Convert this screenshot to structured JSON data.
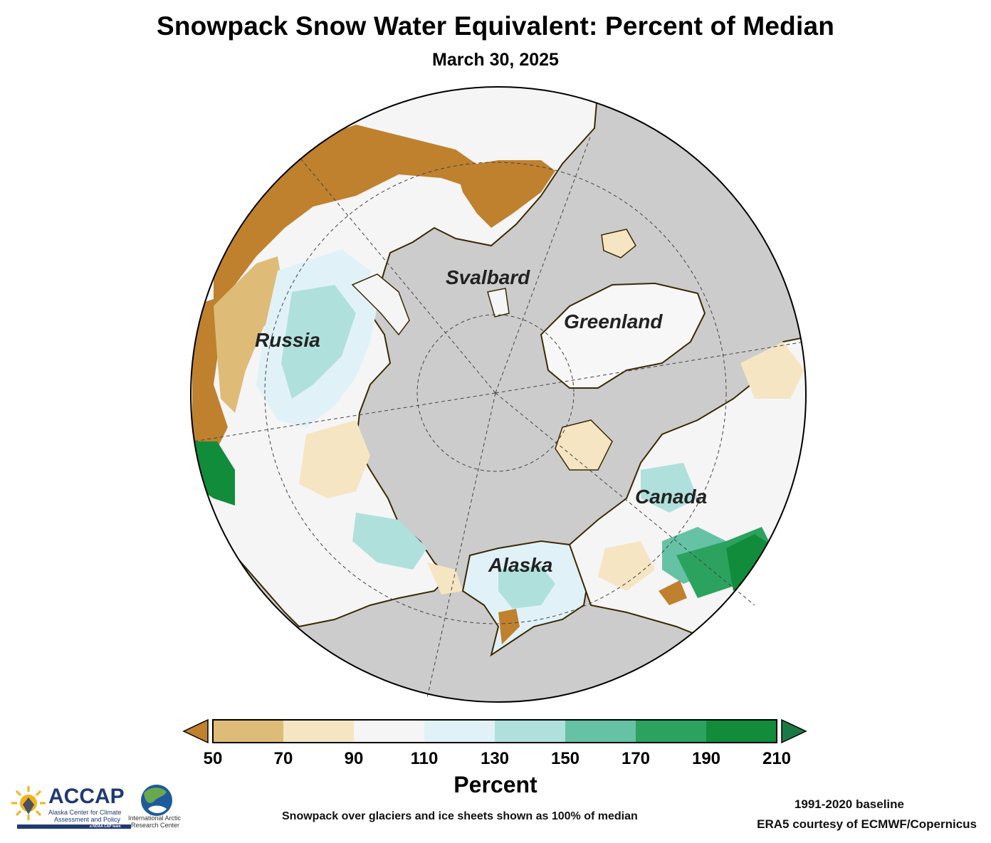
{
  "header": {
    "title": "Snowpack Snow Water Equivalent: Percent of Median",
    "date": "March 30, 2025"
  },
  "map": {
    "labels": {
      "russia": "Russia",
      "svalbard": "Svalbard",
      "greenland": "Greenland",
      "canada": "Canada",
      "alaska": "Alaska"
    },
    "colors": {
      "ocean": "#cccccc",
      "coast": "#3a2a05"
    }
  },
  "colorbar": {
    "title": "Percent",
    "ticks": [
      "50",
      "70",
      "90",
      "110",
      "130",
      "150",
      "170",
      "190",
      "210"
    ],
    "bins": [
      {
        "from": 50,
        "to": 70,
        "color": "#dfbb78"
      },
      {
        "from": 70,
        "to": 90,
        "color": "#f5e5c2"
      },
      {
        "from": 90,
        "to": 110,
        "color": "#f5f5f5"
      },
      {
        "from": 110,
        "to": 130,
        "color": "#e0f2f8"
      },
      {
        "from": 130,
        "to": 150,
        "color": "#b0e0dc"
      },
      {
        "from": 150,
        "to": 170,
        "color": "#66c2a4"
      },
      {
        "from": 170,
        "to": 190,
        "color": "#2ca25f"
      },
      {
        "from": 190,
        "to": 210,
        "color": "#118c3a"
      }
    ],
    "under_color": "#bf812d",
    "over_color": "#1a7a45"
  },
  "footer": {
    "note": "Snowpack over glaciers and ice sheets shown as 100% of median",
    "baseline": "1991-2020 baseline",
    "source": "ERA5 courtesy of ECMWF/Copernicus",
    "logo_accap": "ACCAP",
    "logo_accap_line1": "Alaska Center for Climate",
    "logo_accap_line2": "Assessment and Policy",
    "logo_accap_tag": "a NOAA CAP team",
    "logo_iarc_line1": "International Arctic",
    "logo_iarc_line2": "Research Center"
  }
}
